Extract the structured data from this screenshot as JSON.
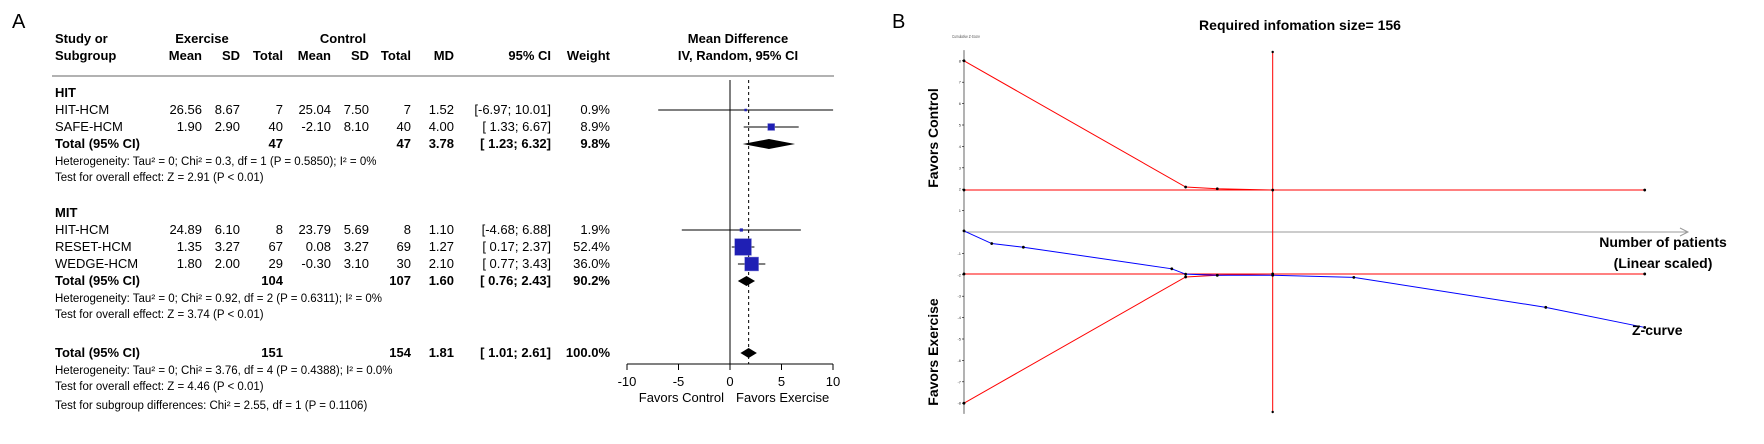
{
  "chart_data": [
    {
      "type": "forest",
      "panel_label": "A",
      "headers": {
        "study_line1": "Study or",
        "study_line2": "Subgroup",
        "exercise": "Exercise",
        "control": "Control",
        "mean": "Mean",
        "sd": "SD",
        "total": "Total",
        "md": "MD",
        "ci": "95% CI",
        "weight": "Weight",
        "plot_line1": "Mean Difference",
        "plot_line2": "IV, Random, 95% CI"
      },
      "subgroups": [
        {
          "name": "HIT",
          "studies": [
            {
              "study": "HIT-HCM",
              "ex_mean": "26.56",
              "ex_sd": "8.67",
              "ex_total": "7",
              "ct_mean": "25.04",
              "ct_sd": "7.50",
              "ct_total": "7",
              "md": "1.52",
              "ci": "[-6.97; 10.01]",
              "weight": "0.9%",
              "md_val": 1.52,
              "lo": -6.97,
              "hi": 10.01,
              "w": 0.9
            },
            {
              "study": "SAFE-HCM",
              "ex_mean": "1.90",
              "ex_sd": "2.90",
              "ex_total": "40",
              "ct_mean": "-2.10",
              "ct_sd": "8.10",
              "ct_total": "40",
              "md": "4.00",
              "ci": "[ 1.33; 6.67]",
              "weight": "8.9%",
              "md_val": 4.0,
              "lo": 1.33,
              "hi": 6.67,
              "w": 8.9
            }
          ],
          "total": {
            "label": "Total (95% CI)",
            "ex_total": "47",
            "ct_total": "47",
            "md": "3.78",
            "ci": "[ 1.23; 6.32]",
            "weight": "9.8%",
            "md_val": 3.78,
            "lo": 1.23,
            "hi": 6.32
          },
          "heterogeneity": "Heterogeneity: Tau² = 0; Chi² = 0.3, df = 1 (P = 0.5850); I² = 0%",
          "overall": "Test for overall effect: Z = 2.91 (P < 0.01)"
        },
        {
          "name": "MIT",
          "studies": [
            {
              "study": "HIT-HCM",
              "ex_mean": "24.89",
              "ex_sd": "6.10",
              "ex_total": "8",
              "ct_mean": "23.79",
              "ct_sd": "5.69",
              "ct_total": "8",
              "md": "1.10",
              "ci": "[-4.68; 6.88]",
              "weight": "1.9%",
              "md_val": 1.1,
              "lo": -4.68,
              "hi": 6.88,
              "w": 1.9
            },
            {
              "study": "RESET-HCM",
              "ex_mean": "1.35",
              "ex_sd": "3.27",
              "ex_total": "67",
              "ct_mean": "0.08",
              "ct_sd": "3.27",
              "ct_total": "69",
              "md": "1.27",
              "ci": "[ 0.17; 2.37]",
              "weight": "52.4%",
              "md_val": 1.27,
              "lo": 0.17,
              "hi": 2.37,
              "w": 52.4
            },
            {
              "study": "WEDGE-HCM",
              "ex_mean": "1.80",
              "ex_sd": "2.00",
              "ex_total": "29",
              "ct_mean": "-0.30",
              "ct_sd": "3.10",
              "ct_total": "30",
              "md": "2.10",
              "ci": "[ 0.77; 3.43]",
              "weight": "36.0%",
              "md_val": 2.1,
              "lo": 0.77,
              "hi": 3.43,
              "w": 36.0
            }
          ],
          "total": {
            "label": "Total (95% CI)",
            "ex_total": "104",
            "ct_total": "107",
            "md": "1.60",
            "ci": "[ 0.76; 2.43]",
            "weight": "90.2%",
            "md_val": 1.6,
            "lo": 0.76,
            "hi": 2.43
          },
          "heterogeneity": "Heterogeneity: Tau² = 0; Chi² = 0.92, df = 2 (P = 0.6311); I² = 0%",
          "overall": "Test for overall effect: Z = 3.74 (P < 0.01)"
        }
      ],
      "overall_total": {
        "label": "Total (95% CI)",
        "ex_total": "151",
        "ct_total": "154",
        "md": "1.81",
        "ci": "[ 1.01; 2.61]",
        "weight": "100.0%",
        "md_val": 1.81,
        "lo": 1.01,
        "hi": 2.61
      },
      "footer": [
        "Heterogeneity: Tau² = 0; Chi² = 3.76, df = 4 (P = 0.4388); I² = 0.0%",
        "Test for overall effect: Z = 4.46 (P < 0.01)",
        "Test for subgroup differences: Chi² = 2.55, df = 1 (P = 0.1106)"
      ],
      "xlim": [
        -10,
        10
      ],
      "xticks": [
        "-10",
        "-5",
        "0",
        "5",
        "10"
      ],
      "xlabel_left": "Favors Control",
      "xlabel_right": "Favors Exercise",
      "colors": {
        "square": "#1f1fb4",
        "diamond": "#000000",
        "pooled_line": "#000000"
      }
    },
    {
      "type": "line",
      "panel_label": "B",
      "title": "Required infomation size= 156",
      "ylabel_top": "Favors Control",
      "ylabel_bottom": "Favors Exercise",
      "xlabel_line1": "Number of patients",
      "xlabel_line2": "(Linear scaled)",
      "zcurve_label": "Z-curve",
      "tiny_caption": "Cumulative Z-Score",
      "ylim": [
        -8.5,
        8.5
      ],
      "xlim": [
        0,
        330
      ],
      "required_information_size": 156,
      "series": [
        {
          "name": "Z-curve",
          "color": "#0000ff",
          "x": [
            0,
            14,
            30,
            105,
            112,
            128,
            156,
            197,
            294,
            344
          ],
          "y": [
            0.05,
            -0.54,
            -0.71,
            -1.72,
            -1.97,
            -2.02,
            -2.02,
            -2.12,
            -3.52,
            -4.46
          ]
        },
        {
          "color": "#ff0000",
          "x": [
            0,
            112,
            128,
            156
          ],
          "y": [
            8.0,
            2.1,
            2.02,
            1.96
          ]
        },
        {
          "color": "#ff0000",
          "x": [
            0,
            112,
            128,
            156
          ],
          "y": [
            -8.0,
            -2.1,
            -2.02,
            -1.96
          ]
        },
        {
          "color": "#ff0000",
          "x": [
            0,
            344
          ],
          "y": [
            1.96,
            1.96
          ]
        },
        {
          "color": "#ff0000",
          "x": [
            0,
            344
          ],
          "y": [
            -1.96,
            -1.96
          ]
        }
      ],
      "colors": {
        "boundary": "#ff0000",
        "zcurve": "#0000ff",
        "axis": "#000000",
        "xaxis": "#999999"
      }
    }
  ]
}
